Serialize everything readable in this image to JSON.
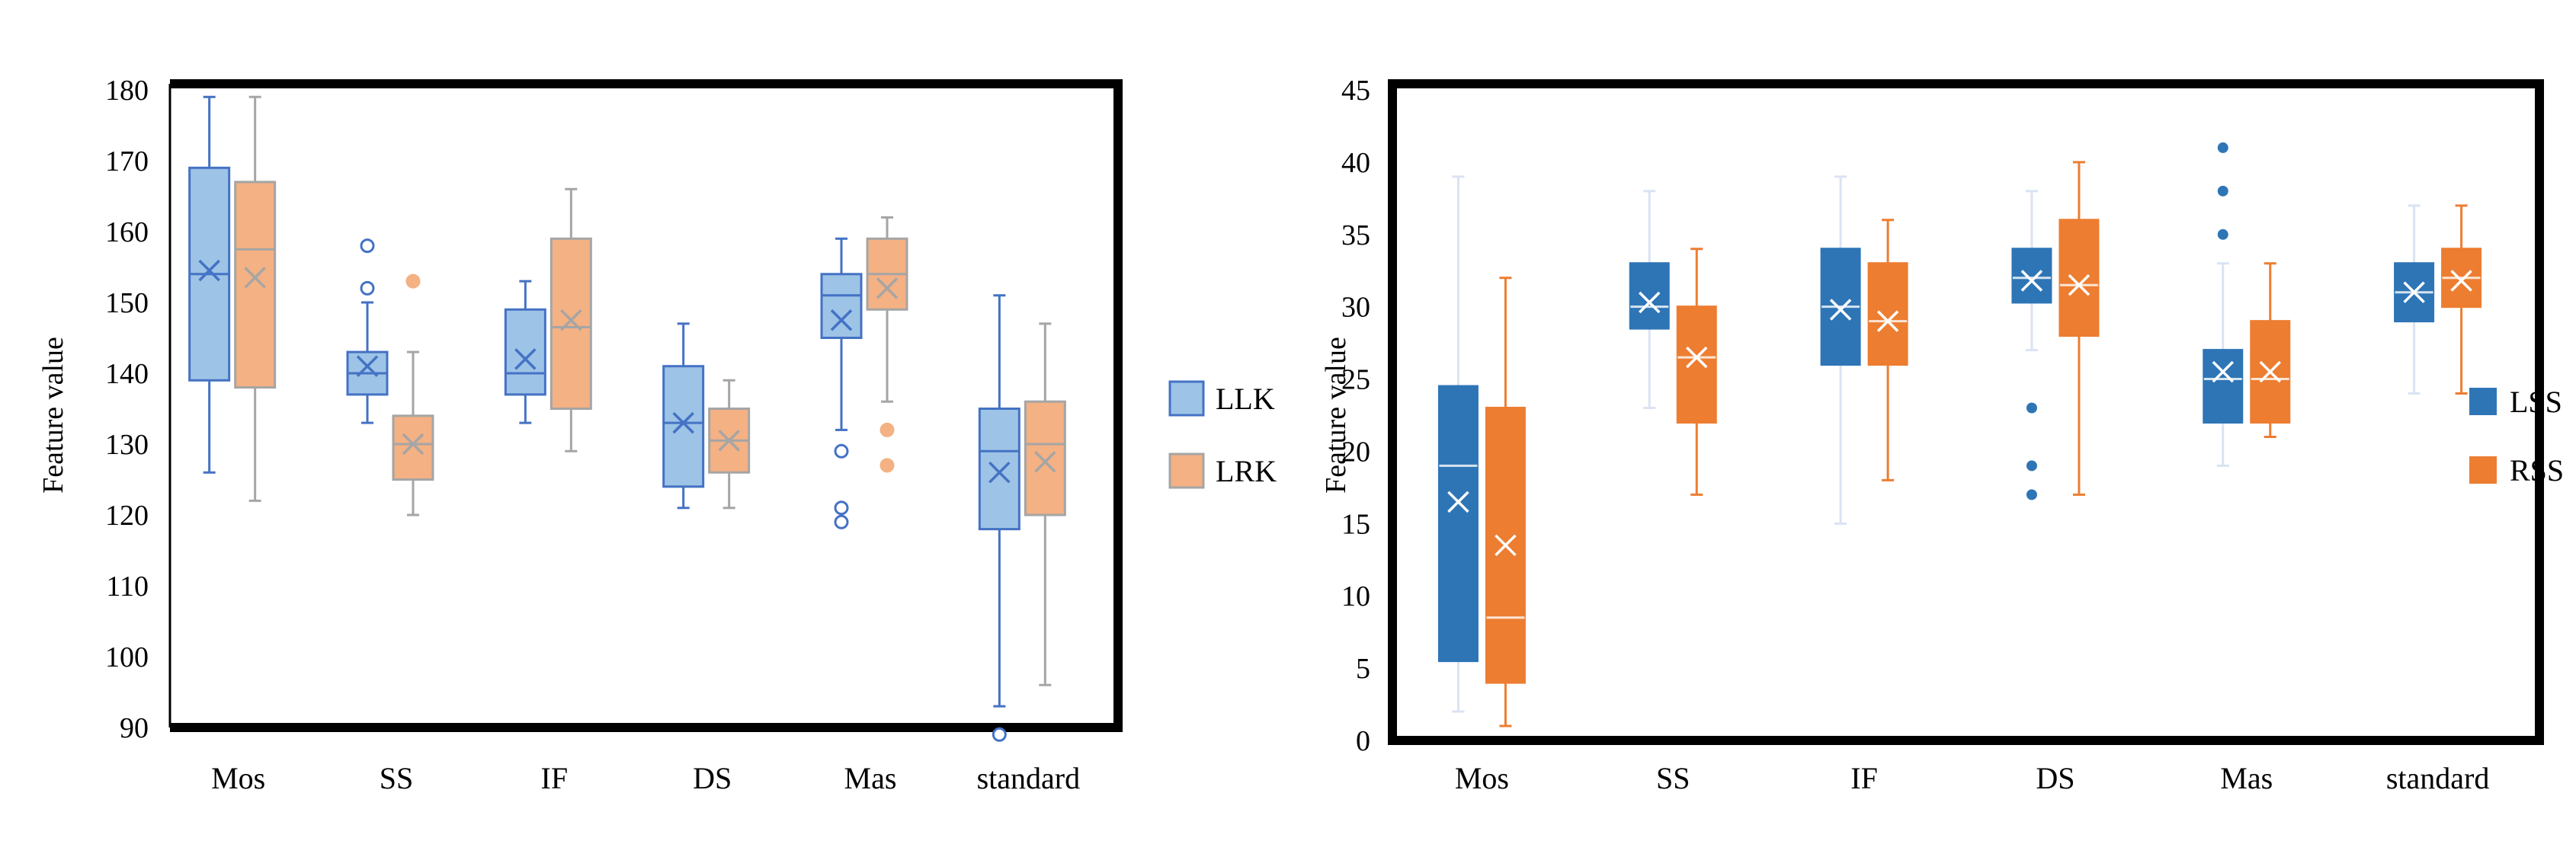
{
  "chart_data": [
    {
      "type": "box",
      "title": "",
      "ylabel": "Feature value",
      "xlabel": "",
      "ylim": [
        90,
        180
      ],
      "yticks": [
        "90",
        "100",
        "110",
        "120",
        "130",
        "140",
        "150",
        "160",
        "170",
        "180"
      ],
      "categories": [
        "Mos",
        "SS",
        "IF",
        "DS",
        "Mas",
        "standard"
      ],
      "legend_position": "right",
      "series": [
        {
          "name": "LLK",
          "fill": "#9dc3e6",
          "stroke": "#4472c4",
          "boxes": [
            {
              "min": 126,
              "q1": 139,
              "median": 154,
              "q3": 169,
              "max": 179,
              "mean": 154.5,
              "outliers": []
            },
            {
              "min": 133,
              "q1": 137,
              "median": 140,
              "q3": 143,
              "max": 150,
              "mean": 141,
              "outliers": [
                158,
                152
              ]
            },
            {
              "min": 133,
              "q1": 137,
              "median": 140,
              "q3": 149,
              "max": 153,
              "mean": 142,
              "outliers": []
            },
            {
              "min": 121,
              "q1": 124,
              "median": 133,
              "q3": 141,
              "max": 147,
              "mean": 133,
              "outliers": []
            },
            {
              "min": 132,
              "q1": 145,
              "median": 151,
              "q3": 154,
              "max": 159,
              "mean": 147.5,
              "outliers": [
                129,
                121,
                119
              ]
            },
            {
              "min": 93,
              "q1": 118,
              "median": 129,
              "q3": 135,
              "max": 151,
              "mean": 126,
              "outliers": [
                89
              ]
            }
          ]
        },
        {
          "name": "LRK",
          "fill": "#f4b183",
          "stroke": "#a5a5a5",
          "boxes": [
            {
              "min": 122,
              "q1": 138,
              "median": 157.5,
              "q3": 167,
              "max": 179,
              "mean": 153.5,
              "outliers": []
            },
            {
              "min": 120,
              "q1": 125,
              "median": 130,
              "q3": 134,
              "max": 143,
              "mean": 130,
              "outliers": [
                153
              ]
            },
            {
              "min": 129,
              "q1": 135,
              "median": 146.5,
              "q3": 159,
              "max": 166,
              "mean": 147.5,
              "outliers": []
            },
            {
              "min": 121,
              "q1": 126,
              "median": 130.5,
              "q3": 135,
              "max": 139,
              "mean": 130.5,
              "outliers": []
            },
            {
              "min": 136,
              "q1": 149,
              "median": 154,
              "q3": 159,
              "max": 162,
              "mean": 152,
              "outliers": [
                132,
                127
              ]
            },
            {
              "min": 96,
              "q1": 120,
              "median": 130,
              "q3": 136,
              "max": 147,
              "mean": 127.5,
              "outliers": []
            }
          ]
        }
      ]
    },
    {
      "type": "box",
      "title": "",
      "ylabel": "Feature value",
      "xlabel": "",
      "ylim": [
        0,
        45
      ],
      "yticks": [
        "0",
        "5",
        "10",
        "15",
        "20",
        "25",
        "30",
        "35",
        "40",
        "45"
      ],
      "categories": [
        "Mos",
        "SS",
        "IF",
        "DS",
        "Mas",
        "standard"
      ],
      "legend_position": "right",
      "series": [
        {
          "name": "LSS",
          "fill": "#2e75b6",
          "stroke": "#2e75b6",
          "whisker": "#dae3f3",
          "boxes": [
            {
              "min": 2,
              "q1": 5.5,
              "median": 19,
              "q3": 24.5,
              "max": 39,
              "mean": 16.5,
              "outliers": []
            },
            {
              "min": 23,
              "q1": 28.5,
              "median": 30,
              "q3": 33,
              "max": 38,
              "mean": 30.3,
              "outliers": []
            },
            {
              "min": 15,
              "q1": 26,
              "median": 30,
              "q3": 34,
              "max": 39,
              "mean": 29.8,
              "outliers": []
            },
            {
              "min": 27,
              "q1": 30.3,
              "median": 32,
              "q3": 34,
              "max": 38,
              "mean": 31.8,
              "outliers": [
                23,
                19,
                17
              ]
            },
            {
              "min": 19,
              "q1": 22,
              "median": 25,
              "q3": 27,
              "max": 33,
              "mean": 25.5,
              "outliers": [
                41,
                38,
                35
              ]
            },
            {
              "min": 24,
              "q1": 29,
              "median": 31,
              "q3": 33,
              "max": 37,
              "mean": 31,
              "outliers": []
            }
          ]
        },
        {
          "name": "RSS",
          "fill": "#ed7d31",
          "stroke": "#ed7d31",
          "whisker": "#ed7d31",
          "boxes": [
            {
              "min": 1,
              "q1": 4,
              "median": 8.5,
              "q3": 23,
              "max": 32,
              "mean": 13.5,
              "outliers": []
            },
            {
              "min": 17,
              "q1": 22,
              "median": 26.5,
              "q3": 30,
              "max": 34,
              "mean": 26.5,
              "outliers": []
            },
            {
              "min": 18,
              "q1": 26,
              "median": 29,
              "q3": 33,
              "max": 36,
              "mean": 29,
              "outliers": []
            },
            {
              "min": 17,
              "q1": 28,
              "median": 31.5,
              "q3": 36,
              "max": 40,
              "mean": 31.5,
              "outliers": []
            },
            {
              "min": 21,
              "q1": 22,
              "median": 25,
              "q3": 29,
              "max": 33,
              "mean": 25.5,
              "outliers": []
            },
            {
              "min": 24,
              "q1": 30,
              "median": 32,
              "q3": 34,
              "max": 37,
              "mean": 31.8,
              "outliers": []
            }
          ]
        }
      ]
    }
  ]
}
